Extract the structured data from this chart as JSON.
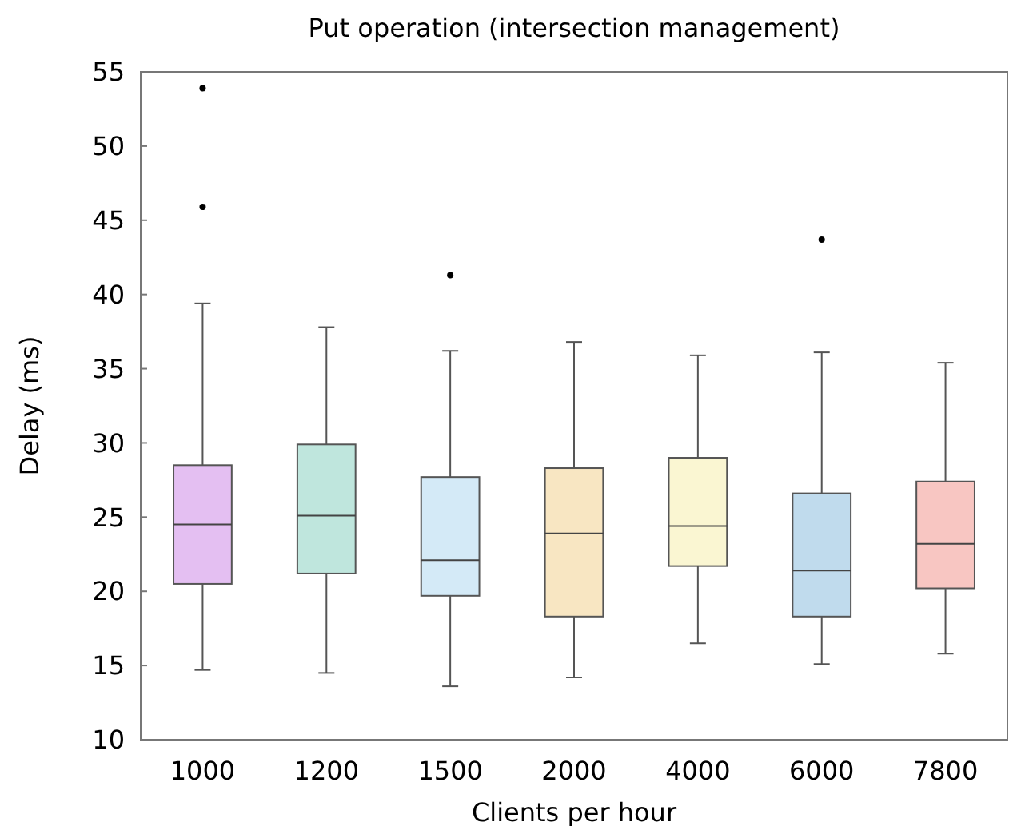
{
  "chart_data": {
    "type": "box",
    "title": "Put operation (intersection management)",
    "xlabel": "Clients per hour",
    "ylabel": "Delay (ms)",
    "categories": [
      "1000",
      "1200",
      "1500",
      "2000",
      "4000",
      "6000",
      "7800"
    ],
    "colors": [
      "#e4bff2",
      "#bfe6dd",
      "#d4eaf7",
      "#f8e6c2",
      "#faf6d2",
      "#c0dbed",
      "#f8c6c2"
    ],
    "boxes": [
      {
        "low": 14.7,
        "q1": 20.5,
        "median": 24.5,
        "q3": 28.5,
        "high": 39.4,
        "outliers": [
          53.9,
          45.9
        ]
      },
      {
        "low": 14.5,
        "q1": 21.2,
        "median": 25.1,
        "q3": 29.9,
        "high": 37.8
      },
      {
        "low": 13.6,
        "q1": 19.7,
        "median": 22.1,
        "q3": 27.7,
        "high": 36.2,
        "outliers": [
          41.3
        ]
      },
      {
        "low": 14.2,
        "q1": 18.3,
        "median": 23.9,
        "q3": 28.3,
        "high": 36.8
      },
      {
        "low": 16.5,
        "q1": 21.7,
        "median": 24.4,
        "q3": 29,
        "high": 35.9
      },
      {
        "low": 15.1,
        "q1": 18.3,
        "median": 21.4,
        "q3": 26.6,
        "high": 36.1,
        "outliers": [
          43.7
        ]
      },
      {
        "low": 15.8,
        "q1": 20.2,
        "median": 23.2,
        "q3": 27.4,
        "high": 35.4
      }
    ],
    "ylim": [
      10,
      55
    ],
    "yticks": [
      10,
      15,
      20,
      25,
      30,
      35,
      40,
      45,
      50,
      55
    ],
    "grid": false
  }
}
